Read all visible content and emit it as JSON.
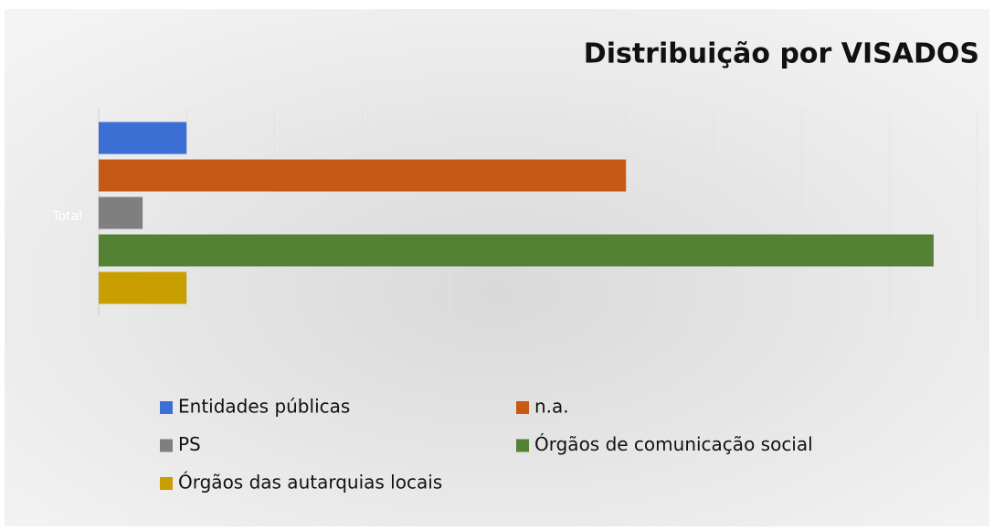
{
  "chart_data": {
    "type": "bar",
    "orientation": "horizontal",
    "title": "Distribuição por VISADOS",
    "categories": [
      "Total"
    ],
    "series": [
      {
        "name": "Entidades públicas",
        "color": "#3b6fd4",
        "values": [
          2
        ]
      },
      {
        "name": "n.a.",
        "color": "#c65a14",
        "values": [
          12
        ]
      },
      {
        "name": "PS",
        "color": "#7f7f7f",
        "values": [
          1
        ]
      },
      {
        "name": "Órgãos de comunicação social",
        "color": "#548235",
        "values": [
          19
        ]
      },
      {
        "name": "Órgãos das autarquias locais",
        "color": "#c99e00",
        "values": [
          2
        ]
      }
    ],
    "xlim": [
      0,
      20
    ],
    "xticks": [
      0,
      2,
      4,
      6,
      8,
      10,
      12,
      14,
      16,
      18,
      20
    ],
    "grid": true,
    "legend": "bottom"
  }
}
